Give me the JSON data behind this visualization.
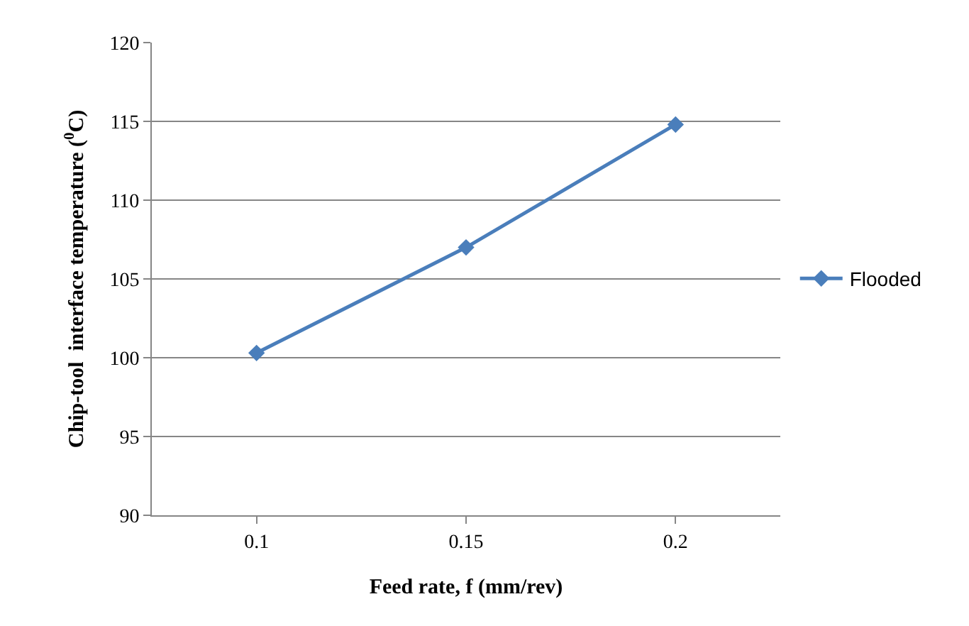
{
  "chart_data": {
    "type": "line",
    "xlabel": "Feed rate, f (mm/rev)",
    "ylabel": "Chip-tool  interface temperature ($^{0}$C)",
    "categories": [
      "0.1",
      "0.15",
      "0.2"
    ],
    "series": [
      {
        "name": "Flooded",
        "color": "#4a7ebb",
        "values": [
          100.3,
          107,
          114.8
        ]
      }
    ],
    "ylim": [
      90,
      120
    ],
    "yticks": [
      90,
      95,
      100,
      105,
      110,
      115,
      120
    ],
    "grid": "y",
    "legend": "right",
    "marker": "diamond",
    "line_style": "solid"
  }
}
